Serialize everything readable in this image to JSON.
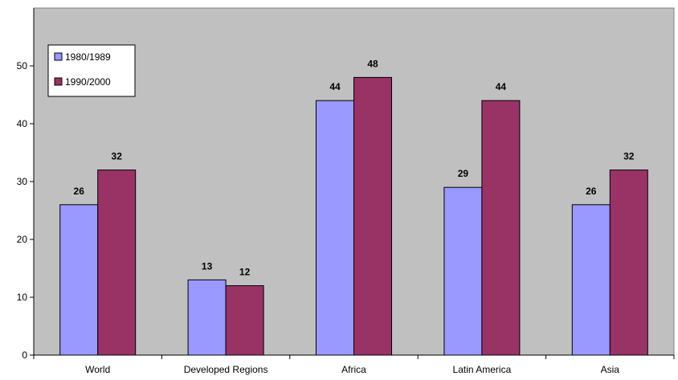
{
  "chart_data": {
    "type": "bar",
    "categories": [
      "World",
      "Developed Regions",
      "Africa",
      "Latin America",
      "Asia"
    ],
    "series": [
      {
        "name": "1980/1989",
        "values": [
          26,
          13,
          44,
          29,
          26
        ],
        "color": "#9999ff"
      },
      {
        "name": "1990/2000",
        "values": [
          32,
          12,
          48,
          44,
          32
        ],
        "color": "#993366"
      }
    ],
    "y_ticks": [
      "0",
      "10",
      "20",
      "30",
      "40",
      "50"
    ],
    "ylim": [
      0,
      60
    ],
    "grid": false,
    "legend_position": "top-left",
    "show_data_labels": true,
    "plot_background": "#c0c0c0"
  }
}
